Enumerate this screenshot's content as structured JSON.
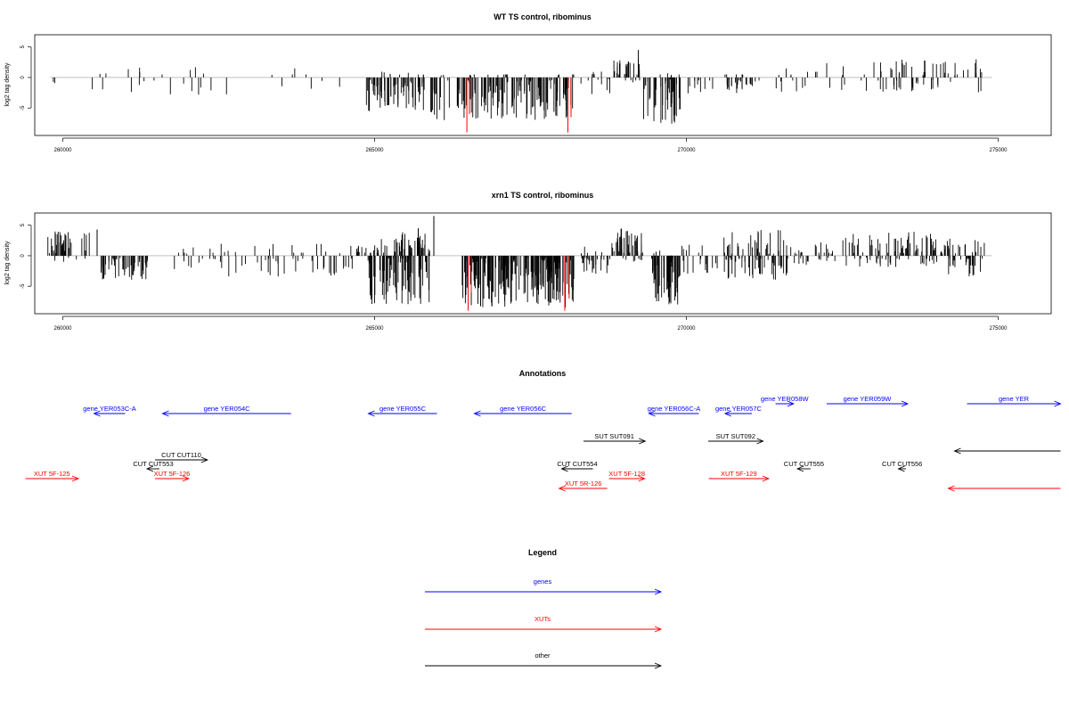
{
  "chart_data": [
    {
      "type": "bar",
      "title": "WT TS control, ribominus",
      "ylabel": "log2 tag density",
      "xlim": [
        259550,
        275850
      ],
      "ylim": [
        -9.5,
        7
      ],
      "xticks": [
        260000,
        265000,
        270000,
        275000
      ],
      "yticks": [
        -5,
        0,
        5
      ],
      "seed": 11,
      "series": [
        {
          "name": "",
          "color": "#000000",
          "baseline": 0,
          "segments": [
            {
              "from": 259800,
              "to": 260000,
              "n": 2,
              "lo": -1,
              "hi": 0
            },
            {
              "from": 260400,
              "to": 262700,
              "n": 22,
              "lo": -3,
              "hi": 2
            },
            {
              "from": 263300,
              "to": 264800,
              "n": 8,
              "lo": -2,
              "hi": 1.5
            },
            {
              "from": 264850,
              "to": 265800,
              "n": 70,
              "lo": -5.5,
              "hi": 1
            },
            {
              "from": 265700,
              "to": 265800,
              "n": 2,
              "lo": 0,
              "hi": 2
            },
            {
              "from": 265900,
              "to": 268200,
              "n": 160,
              "lo": -7,
              "hi": 0.5
            },
            {
              "from": 268300,
              "to": 268800,
              "n": 12,
              "lo": -3,
              "hi": 1
            },
            {
              "from": 268800,
              "to": 269250,
              "n": 30,
              "lo": -1,
              "hi": 3
            },
            {
              "from": 269300,
              "to": 269900,
              "n": 50,
              "lo": -8,
              "hi": 1
            },
            {
              "from": 269900,
              "to": 270500,
              "n": 10,
              "lo": -3,
              "hi": 0
            },
            {
              "from": 270600,
              "to": 271100,
              "n": 30,
              "lo": -3,
              "hi": 0.5
            },
            {
              "from": 271100,
              "to": 272600,
              "n": 22,
              "lo": -2.5,
              "hi": 2.5
            },
            {
              "from": 272800,
              "to": 274800,
              "n": 65,
              "lo": -2.5,
              "hi": 3
            }
          ],
          "points": [
            {
              "x": 269230,
              "y": 4.5
            },
            {
              "x": 265250,
              "y": 0.6
            }
          ]
        },
        {
          "name": "",
          "color": "#ff0000",
          "baseline": 0,
          "points": [
            {
              "x": 266480,
              "y": -9
            },
            {
              "x": 266520,
              "y": -6
            },
            {
              "x": 268100,
              "y": -9
            },
            {
              "x": 268150,
              "y": -6.5
            }
          ]
        }
      ]
    },
    {
      "type": "bar",
      "title": "xrn1 TS control, ribominus",
      "ylabel": "log2 tag density",
      "xlim": [
        259550,
        275850
      ],
      "ylim": [
        -9.5,
        7
      ],
      "xticks": [
        260000,
        265000,
        270000,
        275000
      ],
      "yticks": [
        -5,
        0,
        5
      ],
      "seed": 37,
      "series": [
        {
          "name": "",
          "color": "#000000",
          "baseline": 0,
          "segments": [
            {
              "from": 259750,
              "to": 260550,
              "n": 40,
              "lo": -1,
              "hi": 4
            },
            {
              "from": 260600,
              "to": 261400,
              "n": 55,
              "lo": -4,
              "hi": 0
            },
            {
              "from": 261700,
              "to": 264700,
              "n": 70,
              "lo": -3.5,
              "hi": 2
            },
            {
              "from": 264700,
              "to": 264900,
              "n": 10,
              "lo": -1,
              "hi": 2
            },
            {
              "from": 264900,
              "to": 265900,
              "n": 110,
              "lo": -8,
              "hi": 3
            },
            {
              "from": 265400,
              "to": 265900,
              "n": 20,
              "lo": 0,
              "hi": 4
            },
            {
              "from": 266400,
              "to": 268200,
              "n": 200,
              "lo": -8.5,
              "hi": 0
            },
            {
              "from": 268300,
              "to": 268800,
              "n": 30,
              "lo": -3,
              "hi": 1.5
            },
            {
              "from": 268800,
              "to": 269300,
              "n": 50,
              "lo": -1,
              "hi": 4.5
            },
            {
              "from": 269400,
              "to": 269900,
              "n": 50,
              "lo": -8,
              "hi": 1
            },
            {
              "from": 269900,
              "to": 270500,
              "n": 20,
              "lo": -3,
              "hi": 2
            },
            {
              "from": 270600,
              "to": 271700,
              "n": 80,
              "lo": -4,
              "hi": 4.5
            },
            {
              "from": 271700,
              "to": 272400,
              "n": 30,
              "lo": -1.5,
              "hi": 2.5
            },
            {
              "from": 272500,
              "to": 274000,
              "n": 90,
              "lo": -2,
              "hi": 4
            },
            {
              "from": 274000,
              "to": 274800,
              "n": 50,
              "lo": -3.5,
              "hi": 3
            }
          ],
          "points": [
            {
              "x": 265950,
              "y": 6.5
            },
            {
              "x": 265700,
              "y": 4.5
            },
            {
              "x": 260550,
              "y": 4.3
            }
          ]
        },
        {
          "name": "",
          "color": "#ff0000",
          "baseline": 0,
          "points": [
            {
              "x": 266500,
              "y": -9
            },
            {
              "x": 266550,
              "y": -6
            },
            {
              "x": 268050,
              "y": -9
            },
            {
              "x": 268120,
              "y": -7
            }
          ]
        }
      ]
    }
  ],
  "annotations": {
    "title": "Annotations",
    "xlim": [
      259550,
      275850
    ],
    "items": [
      {
        "label": "gene YER053C-A",
        "color": "#0000ff",
        "dir": "left",
        "start": 260500,
        "end": 261000,
        "row": 0
      },
      {
        "label": "gene YER054C",
        "color": "#0000ff",
        "dir": "left",
        "start": 261600,
        "end": 263660,
        "row": 0
      },
      {
        "label": "gene YER055C",
        "color": "#0000ff",
        "dir": "left",
        "start": 264900,
        "end": 266000,
        "row": 0
      },
      {
        "label": "gene YER056C",
        "color": "#0000ff",
        "dir": "left",
        "start": 266600,
        "end": 268160,
        "row": 0
      },
      {
        "label": "gene YER056C-A",
        "color": "#0000ff",
        "dir": "left",
        "start": 269400,
        "end": 270200,
        "row": 0
      },
      {
        "label": "gene YER057C",
        "color": "#0000ff",
        "dir": "left",
        "start": 270620,
        "end": 271050,
        "row": 0
      },
      {
        "label": "gene YER058W",
        "color": "#0000ff",
        "dir": "right",
        "start": 271430,
        "end": 271720,
        "row": -1
      },
      {
        "label": "gene YER059W",
        "color": "#0000ff",
        "dir": "right",
        "start": 272250,
        "end": 273550,
        "row": -1
      },
      {
        "label": "gene YER",
        "color": "#0000ff",
        "dir": "right",
        "start": 274500,
        "end": 276000,
        "row": -1
      },
      {
        "label": "SUT SUT091",
        "color": "#000000",
        "dir": "right",
        "start": 268350,
        "end": 269340,
        "row": 1
      },
      {
        "label": "SUT SUT092",
        "color": "#000000",
        "dir": "right",
        "start": 270350,
        "end": 271230,
        "row": 1
      },
      {
        "label": "",
        "color": "#000000",
        "dir": "left",
        "start": 274300,
        "end": 276000,
        "row": 1.5
      },
      {
        "label": "CUT CUT110",
        "color": "#000000",
        "dir": "right",
        "start": 261480,
        "end": 262320,
        "row": 2
      },
      {
        "label": "CUT CUT553",
        "color": "#000000",
        "dir": "left",
        "start": 261350,
        "end": 261550,
        "row": 3
      },
      {
        "label": "CUT CUT554",
        "color": "#000000",
        "dir": "left",
        "start": 268000,
        "end": 268500,
        "row": 3
      },
      {
        "label": "CUT CUT555",
        "color": "#000000",
        "dir": "left",
        "start": 271780,
        "end": 271990,
        "row": 3
      },
      {
        "label": "CUT CUT556",
        "color": "#000000",
        "dir": "left",
        "start": 273400,
        "end": 273520,
        "row": 3
      },
      {
        "label": "XUT 5F-125",
        "color": "#ff0000",
        "dir": "right",
        "start": 259400,
        "end": 260250,
        "row": 4
      },
      {
        "label": "XUT 5F-126",
        "color": "#ff0000",
        "dir": "right",
        "start": 261480,
        "end": 262020,
        "row": 4
      },
      {
        "label": "XUT 5F-128",
        "color": "#ff0000",
        "dir": "right",
        "start": 268760,
        "end": 269330,
        "row": 4
      },
      {
        "label": "XUT 5F-129",
        "color": "#ff0000",
        "dir": "right",
        "start": 270360,
        "end": 271320,
        "row": 4
      },
      {
        "label": "XUT 5R-126",
        "color": "#ff0000",
        "dir": "left",
        "start": 267960,
        "end": 268730,
        "row": 5
      },
      {
        "label": "",
        "color": "#ff0000",
        "dir": "left",
        "start": 274200,
        "end": 276000,
        "row": 5.5
      }
    ]
  },
  "legend": {
    "title": "Legend",
    "entries": [
      {
        "label": "genes",
        "color": "#0000ff"
      },
      {
        "label": "XUTs",
        "color": "#ff0000"
      },
      {
        "label": "other",
        "color": "#000000"
      }
    ]
  }
}
